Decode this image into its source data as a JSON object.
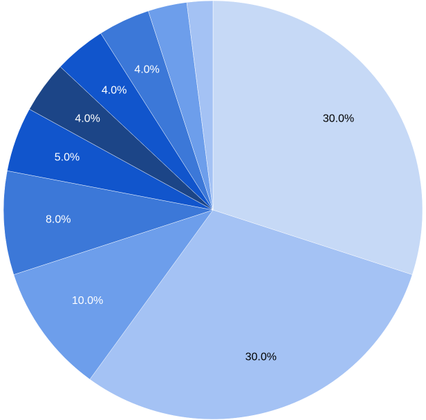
{
  "chart_data": {
    "type": "pie",
    "values": [
      30,
      30,
      10,
      8,
      5,
      4,
      4,
      4,
      3,
      2
    ],
    "value_labels": [
      "30.0%",
      "30.0%",
      "10.0%",
      "8.0%",
      "5.0%",
      "4.0%",
      "4.0%",
      "4.0%",
      null,
      null
    ],
    "colors": [
      "#c6d9f6",
      "#a4c2f4",
      "#6d9eeb",
      "#3c78d8",
      "#1155cc",
      "#1c4587",
      "#1155cc",
      "#3c78d8",
      "#6d9eeb",
      "#a4c2f4"
    ],
    "start_angle": 0,
    "direction": "clockwise"
  }
}
